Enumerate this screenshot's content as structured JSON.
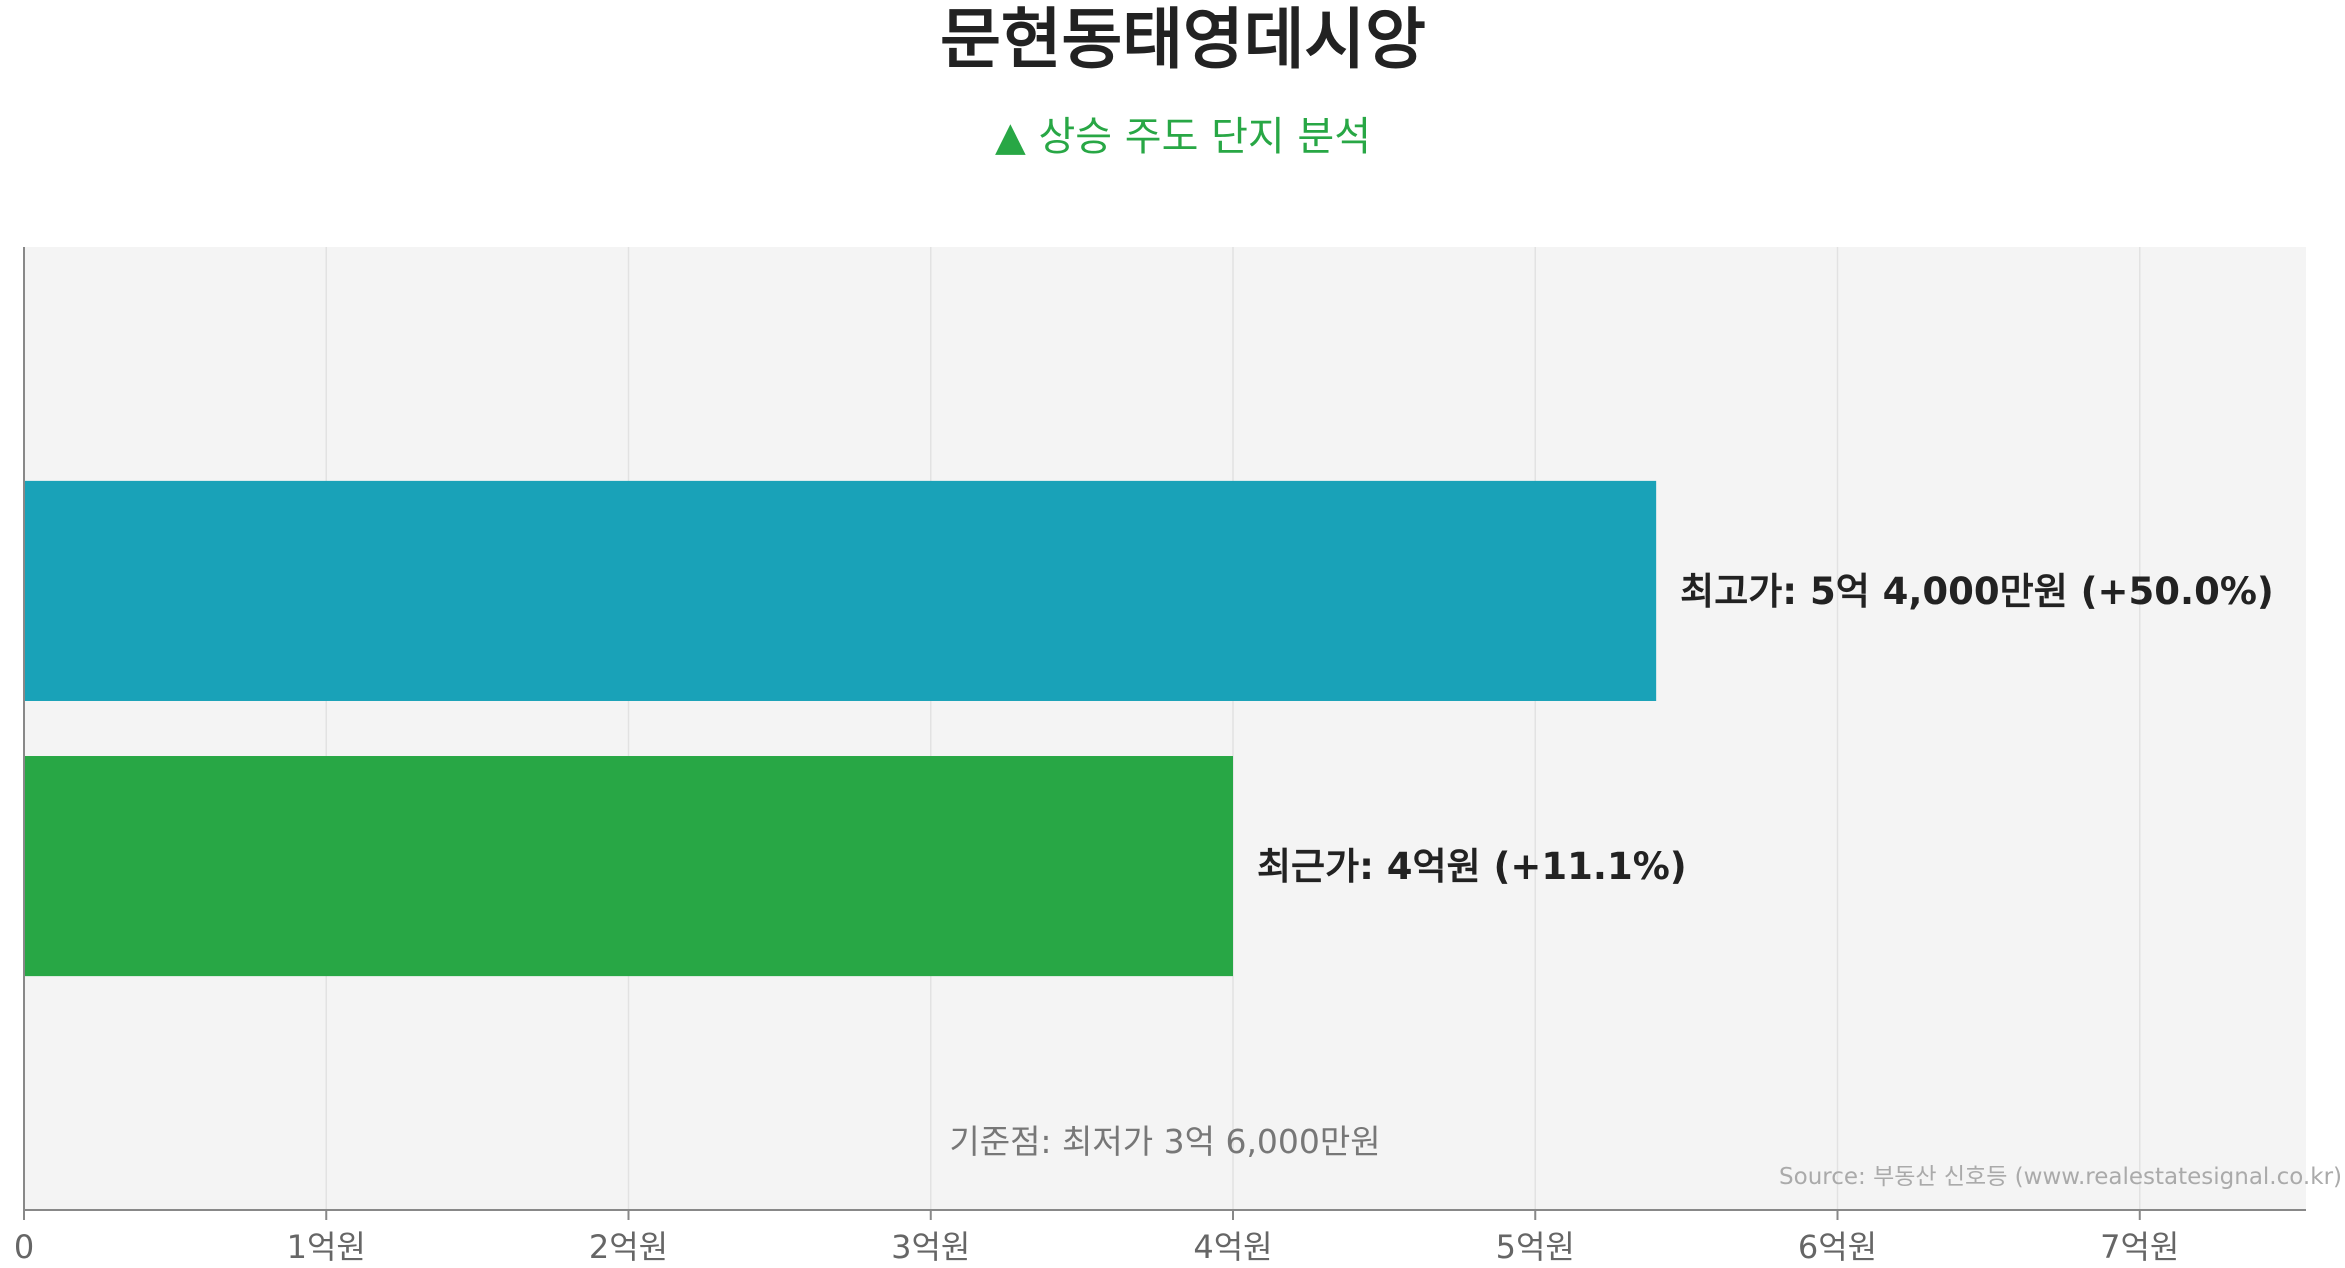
{
  "chart_data": {
    "type": "bar",
    "orientation": "horizontal",
    "title": "문현동태영데시앙",
    "subtitle": "▲ 상승 주도 단지 분석",
    "categories": [
      "최고가",
      "최근가"
    ],
    "values": [
      540000000,
      400000000
    ],
    "bar_labels": [
      "최고가: 5억 4,000만원 (+50.0%)",
      "최근가: 4억원 (+11.1%)"
    ],
    "colors": [
      "#19a2b8",
      "#28a745"
    ],
    "xlim": [
      0,
      755000000
    ],
    "x_ticks": [
      0,
      100000000,
      200000000,
      300000000,
      400000000,
      500000000,
      600000000,
      700000000
    ],
    "x_tick_labels": [
      "0",
      "1억원",
      "2억원",
      "3억원",
      "4억원",
      "5억원",
      "6억원",
      "7억원"
    ],
    "grid": "vertical",
    "annotation": "기준점: 최저가 3억 6,000만원",
    "source": "Source: 부동산 신호등 (www.realestatesignal.co.kr)",
    "subtitle_color": "#28a745",
    "background_color": "#f4f4f4"
  }
}
